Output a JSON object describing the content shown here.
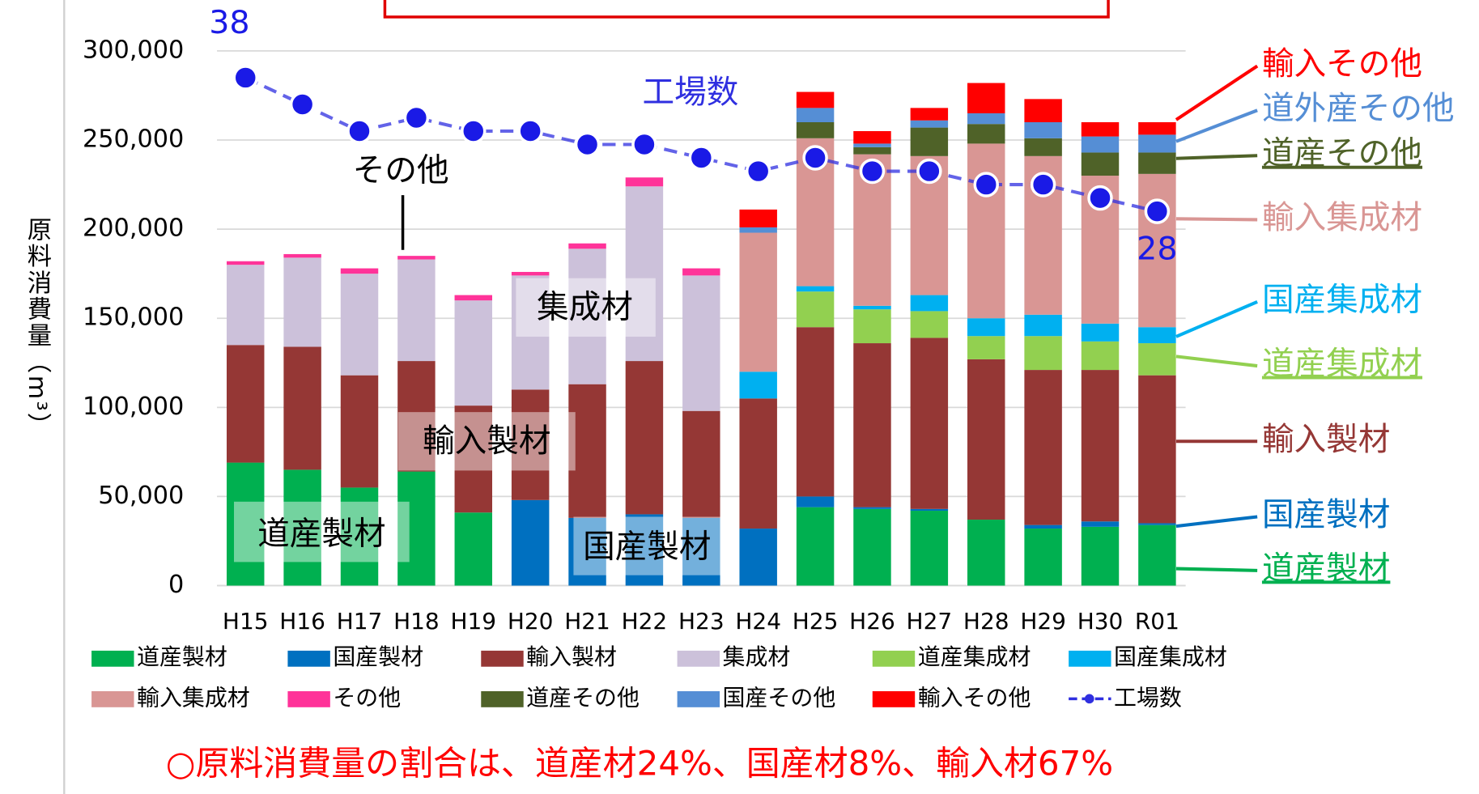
{
  "chart_data": {
    "type": "bar",
    "stacked": true,
    "y_label": "原料消費量（m³）",
    "categories": [
      "H15",
      "H16",
      "H17",
      "H18",
      "H19",
      "H20",
      "H21",
      "H22",
      "H23",
      "H24",
      "H25",
      "H26",
      "H27",
      "H28",
      "H29",
      "H30",
      "R01"
    ],
    "ylim": [
      0,
      300000
    ],
    "yticks": [
      0,
      {
        "value": 50000,
        "label": "50,000"
      },
      {
        "value": 100000,
        "label": "100,000"
      },
      {
        "value": 150000,
        "label": "150,000"
      },
      {
        "value": 200000,
        "label": "200,000"
      },
      {
        "value": 250000,
        "label": "250,000"
      },
      {
        "value": 300000,
        "label": "300,000"
      }
    ],
    "y2lim": [
      0,
      40
    ],
    "grid": true,
    "legend": "bottom",
    "series": [
      {
        "name": "道産製材",
        "color": "#00b050",
        "values": [
          69000,
          65000,
          55000,
          64000,
          41000,
          0,
          0,
          0,
          0,
          0,
          44000,
          43000,
          42000,
          37000,
          32000,
          33000,
          34000
        ]
      },
      {
        "name": "国産製材",
        "color": "#0070c0",
        "values": [
          0,
          0,
          0,
          0,
          0,
          48000,
          38000,
          40000,
          38000,
          32000,
          6000,
          1000,
          1000,
          0,
          2000,
          3000,
          1000
        ]
      },
      {
        "name": "輸入製材",
        "color": "#953735",
        "values": [
          66000,
          69000,
          63000,
          62000,
          60000,
          62000,
          75000,
          86000,
          60000,
          73000,
          95000,
          92000,
          96000,
          90000,
          87000,
          85000,
          83000
        ]
      },
      {
        "name": "集成材",
        "color": "#ccc1da",
        "values": [
          45000,
          50000,
          57000,
          57000,
          59000,
          64000,
          76000,
          98000,
          76000,
          0,
          0,
          0,
          0,
          0,
          0,
          0,
          0
        ]
      },
      {
        "name": "道産集成材",
        "color": "#92d050",
        "values": [
          0,
          0,
          0,
          0,
          0,
          0,
          0,
          0,
          0,
          0,
          20000,
          19000,
          15000,
          13000,
          19000,
          16000,
          18000
        ]
      },
      {
        "name": "国産集成材",
        "color": "#00b0f0",
        "values": [
          0,
          0,
          0,
          0,
          0,
          0,
          0,
          0,
          0,
          15000,
          3000,
          2000,
          9000,
          10000,
          12000,
          10000,
          9000
        ]
      },
      {
        "name": "輸入集成材",
        "color": "#d99694",
        "values": [
          0,
          0,
          0,
          0,
          0,
          0,
          0,
          0,
          0,
          78000,
          83000,
          85000,
          78000,
          98000,
          89000,
          83000,
          86000
        ]
      },
      {
        "name": "その他",
        "color": "#ff3399",
        "values": [
          2000,
          2000,
          3000,
          2000,
          3000,
          2000,
          3000,
          5000,
          4000,
          0,
          0,
          0,
          0,
          0,
          0,
          0,
          0
        ]
      },
      {
        "name": "道産その他",
        "color": "#4f6228",
        "values": [
          0,
          0,
          0,
          0,
          0,
          0,
          0,
          0,
          0,
          0,
          9000,
          4000,
          16000,
          11000,
          10000,
          13000,
          12000
        ]
      },
      {
        "name": "国産その他",
        "color": "#558ed5",
        "values": [
          0,
          0,
          0,
          0,
          0,
          0,
          0,
          0,
          0,
          3000,
          8000,
          2000,
          4000,
          6000,
          9000,
          9000,
          10000
        ]
      },
      {
        "name": "輸入その他",
        "color": "#ff0000",
        "values": [
          0,
          0,
          0,
          0,
          0,
          0,
          0,
          0,
          0,
          10000,
          9000,
          7000,
          7000,
          17000,
          13000,
          8000,
          7000
        ]
      },
      {
        "name": "工場数",
        "color": "#2f2fe0",
        "type": "line",
        "axis": "y2",
        "values": [
          38,
          36,
          34,
          35,
          34,
          34,
          33,
          33,
          32,
          31,
          32,
          31,
          31,
          30,
          30,
          29,
          28
        ],
        "value_labels": [
          "38",
          null,
          null,
          null,
          null,
          null,
          null,
          null,
          null,
          null,
          null,
          null,
          null,
          null,
          null,
          null,
          "28"
        ]
      }
    ],
    "inner_labels": [
      {
        "text": "工場数",
        "color": "#2f2fe0"
      },
      {
        "text": "その他",
        "color": "#000000"
      },
      {
        "text": "集成材",
        "color": "#000000"
      },
      {
        "text": "輸入製材",
        "color": "#000000"
      },
      {
        "text": "道産製材",
        "color": "#000000"
      },
      {
        "text": "国産製材",
        "color": "#000000"
      }
    ],
    "side_labels": [
      {
        "text": "輸入その他",
        "color": "#ff0000"
      },
      {
        "text": "道外産その他",
        "color": "#558ed5"
      },
      {
        "text": "道産その他",
        "color": "#4f6228",
        "underline": true
      },
      {
        "text": "輸入集成材",
        "color": "#d99694"
      },
      {
        "text": "国産集成材",
        "color": "#00b0f0"
      },
      {
        "text": "道産集成材",
        "color": "#92d050",
        "underline": true
      },
      {
        "text": "輸入製材",
        "color": "#953735"
      },
      {
        "text": "国産製材",
        "color": "#0070c0"
      },
      {
        "text": "道産製材",
        "color": "#00b050",
        "underline": true
      }
    ],
    "note": "○原料消費量の割合は、道産材24%、国産材8%、輸入材67%"
  }
}
